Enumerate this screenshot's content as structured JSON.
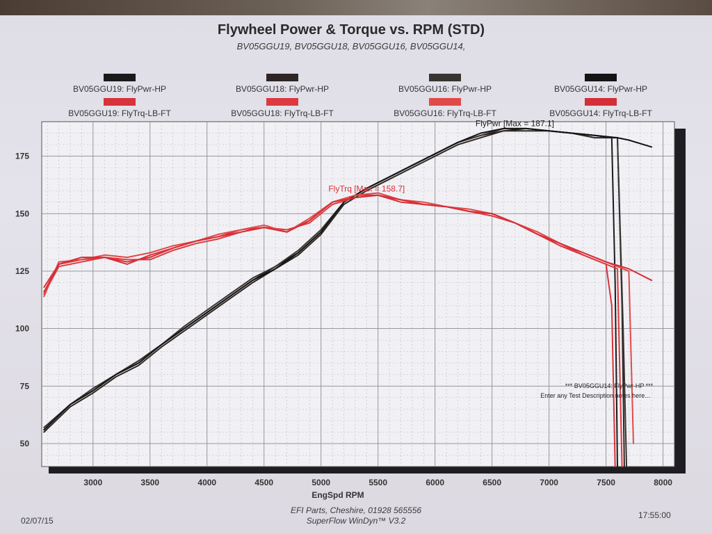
{
  "page": {
    "title": "Flywheel Power & Torque vs. RPM (STD)",
    "subtitle": "BV05GGU19, BV05GGU18, BV05GGU16, BV05GGU14,",
    "legend_power": [
      {
        "label": "BV05GGU19: FlyPwr-HP",
        "color": "#1a1a1a"
      },
      {
        "label": "BV05GGU18: FlyPwr-HP",
        "color": "#2e2622"
      },
      {
        "label": "BV05GGU16: FlyPwr-HP",
        "color": "#3a3430"
      },
      {
        "label": "BV05GGU14: FlyPwr-HP",
        "color": "#141414"
      }
    ],
    "legend_torque": [
      {
        "label": "BV05GGU19: FlyTrq-LB-FT",
        "color": "#d8323a"
      },
      {
        "label": "BV05GGU18: FlyTrq-LB-FT",
        "color": "#dc3a40"
      },
      {
        "label": "BV05GGU16: FlyTrq-LB-FT",
        "color": "#e04a48"
      },
      {
        "label": "BV05GGU14: FlyTrq-LB-FT",
        "color": "#d42e38"
      }
    ],
    "footer": {
      "date": "02/07/15",
      "time": "17:55:00",
      "company": "EFI Parts, Cheshire, 01928 565556",
      "software": "SuperFlow WinDyn™ V3.2"
    }
  },
  "chart_data": {
    "type": "line",
    "xlabel": "EngSpd RPM",
    "ylabel": "",
    "xlim": [
      2550,
      8100
    ],
    "ylim": [
      40,
      190
    ],
    "x_ticks": [
      3000,
      3500,
      4000,
      4500,
      5000,
      5500,
      6000,
      6500,
      7000,
      7500,
      8000
    ],
    "y_ticks": [
      50,
      75,
      100,
      125,
      150,
      175
    ],
    "grid": true,
    "annotations": [
      {
        "text": "FlyPwr [Max = 187.1]",
        "x": 6700,
        "y": 187.1,
        "color": "#222222"
      },
      {
        "text": "FlyTrq [Max = 158.7]",
        "x": 5400,
        "y": 158.7,
        "color": "#d8323a"
      }
    ],
    "notes": [
      "*** BV05GGU14: FlyPwr-HP ***",
      "Enter any Test Description notes here..."
    ],
    "series": [
      {
        "name": "BV05GGU19: FlyPwr-HP",
        "color": "#1a1a1a",
        "x": [
          2570,
          2800,
          3000,
          3200,
          3400,
          3600,
          3800,
          4000,
          4200,
          4400,
          4600,
          4800,
          5000,
          5200,
          5400,
          5600,
          5800,
          6000,
          6200,
          6400,
          6600,
          6800,
          7000,
          7200,
          7400,
          7550,
          7580,
          7600
        ],
        "y": [
          56,
          67,
          73,
          80,
          86,
          93,
          100,
          107,
          114,
          121,
          127,
          133,
          142,
          155,
          161,
          166,
          171,
          176,
          181,
          184,
          186,
          187,
          186,
          185,
          184,
          183,
          120,
          40
        ]
      },
      {
        "name": "BV05GGU18: FlyPwr-HP",
        "color": "#2e2622",
        "x": [
          2570,
          2800,
          3000,
          3200,
          3400,
          3600,
          3800,
          4000,
          4200,
          4400,
          4600,
          4800,
          5000,
          5200,
          5400,
          5600,
          5800,
          6000,
          6200,
          6400,
          6600,
          6800,
          7000,
          7200,
          7400,
          7600,
          7640,
          7660
        ],
        "y": [
          55,
          66,
          72,
          79,
          84,
          92,
          99,
          106,
          113,
          120,
          126,
          132,
          141,
          154,
          160,
          165,
          170,
          175,
          180,
          183,
          186,
          186,
          186,
          185,
          183,
          183,
          110,
          40
        ]
      },
      {
        "name": "BV05GGU16: FlyPwr-HP",
        "color": "#3a3430",
        "x": [
          2570,
          2800,
          3000,
          3200,
          3400,
          3600,
          3800,
          4000,
          4200,
          4400,
          4600,
          4800,
          5000,
          5200,
          5400,
          5600,
          5800,
          6000,
          6200,
          6400,
          6600,
          6800,
          7000,
          7200,
          7400,
          7600,
          7650,
          7680
        ],
        "y": [
          57,
          67,
          74,
          80,
          86,
          93,
          101,
          108,
          115,
          122,
          127,
          134,
          143,
          155,
          161,
          166,
          171,
          176,
          181,
          184,
          187,
          187,
          186,
          185,
          184,
          183,
          100,
          40
        ]
      },
      {
        "name": "BV05GGU14: FlyPwr-HP",
        "color": "#141414",
        "x": [
          2570,
          2800,
          3000,
          3200,
          3400,
          3600,
          3800,
          4000,
          4200,
          4400,
          4600,
          4800,
          5000,
          5200,
          5400,
          5600,
          5800,
          6000,
          6200,
          6400,
          6600,
          6800,
          7000,
          7200,
          7400,
          7600,
          7700,
          7900
        ],
        "y": [
          56,
          67,
          73,
          80,
          85,
          93,
          100,
          107,
          114,
          121,
          126,
          133,
          142,
          155,
          161,
          166,
          171,
          176,
          181,
          185,
          187,
          187,
          186,
          185,
          184,
          183,
          182,
          179
        ]
      },
      {
        "name": "BV05GGU19: FlyTrq-LB-FT",
        "color": "#d8323a",
        "x": [
          2570,
          2700,
          2900,
          3100,
          3300,
          3500,
          3700,
          3900,
          4100,
          4300,
          4500,
          4700,
          4900,
          5100,
          5300,
          5500,
          5700,
          5900,
          6100,
          6300,
          6500,
          6700,
          6900,
          7100,
          7300,
          7500,
          7550,
          7580
        ],
        "y": [
          118,
          128,
          130,
          131,
          128,
          132,
          135,
          138,
          140,
          143,
          144,
          142,
          147,
          155,
          158,
          158,
          155,
          154,
          153,
          151,
          150,
          146,
          141,
          136,
          132,
          128,
          110,
          40
        ]
      },
      {
        "name": "BV05GGU18: FlyTrq-LB-FT",
        "color": "#dc3a40",
        "x": [
          2570,
          2700,
          2900,
          3100,
          3300,
          3500,
          3700,
          3900,
          4100,
          4300,
          4500,
          4700,
          4900,
          5100,
          5300,
          5500,
          5700,
          5900,
          6100,
          6300,
          6500,
          6700,
          6900,
          7100,
          7300,
          7500,
          7600,
          7640
        ],
        "y": [
          115,
          127,
          129,
          131,
          130,
          130,
          134,
          137,
          139,
          142,
          144,
          143,
          146,
          154,
          157,
          158,
          156,
          154,
          153,
          151,
          149,
          146,
          141,
          137,
          132,
          128,
          126,
          40
        ]
      },
      {
        "name": "BV05GGU16: FlyTrq-LB-FT",
        "color": "#e04a48",
        "x": [
          2570,
          2700,
          2900,
          3100,
          3300,
          3500,
          3700,
          3900,
          4100,
          4300,
          4500,
          4700,
          4900,
          5100,
          5300,
          5500,
          5700,
          5900,
          6100,
          6300,
          6500,
          6700,
          6900,
          7100,
          7300,
          7500,
          7700,
          7740
        ],
        "y": [
          114,
          129,
          130,
          132,
          131,
          133,
          136,
          138,
          141,
          143,
          145,
          142,
          148,
          155,
          158,
          159,
          156,
          155,
          153,
          152,
          150,
          146,
          142,
          137,
          133,
          129,
          125,
          50
        ]
      },
      {
        "name": "BV05GGU14: FlyTrq-LB-FT",
        "color": "#d42e38",
        "x": [
          2570,
          2700,
          2900,
          3100,
          3300,
          3500,
          3700,
          3900,
          4100,
          4300,
          4500,
          4700,
          4900,
          5100,
          5300,
          5500,
          5700,
          5900,
          6100,
          6300,
          6500,
          6700,
          6900,
          7100,
          7300,
          7500,
          7700,
          7900
        ],
        "y": [
          116,
          128,
          131,
          131,
          129,
          131,
          135,
          138,
          140,
          142,
          144,
          142,
          147,
          155,
          157,
          158,
          156,
          154,
          153,
          151,
          150,
          146,
          141,
          137,
          133,
          129,
          126,
          121
        ]
      }
    ]
  }
}
